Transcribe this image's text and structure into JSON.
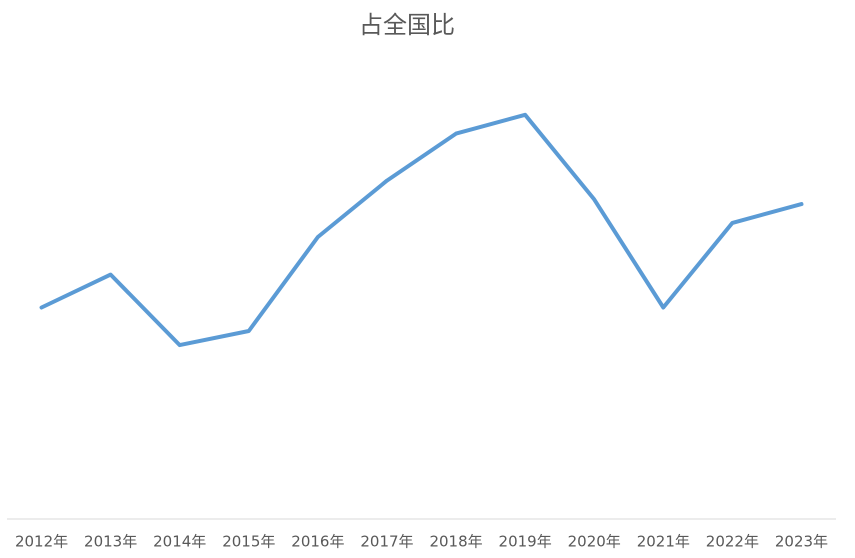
{
  "chart_data": {
    "type": "line",
    "title": "占全国比",
    "categories": [
      "2012年",
      "2013年",
      "2014年",
      "2015年",
      "2016年",
      "2017年",
      "2018年",
      "2019年",
      "2020年",
      "2021年",
      "2022年",
      "2023年"
    ],
    "series": [
      {
        "color": "#5b9bd5",
        "values": [
          45,
          52,
          37,
          40,
          60,
          72,
          82,
          86,
          68,
          45,
          63,
          67
        ]
      }
    ],
    "ylim": [
      0,
      100
    ]
  }
}
